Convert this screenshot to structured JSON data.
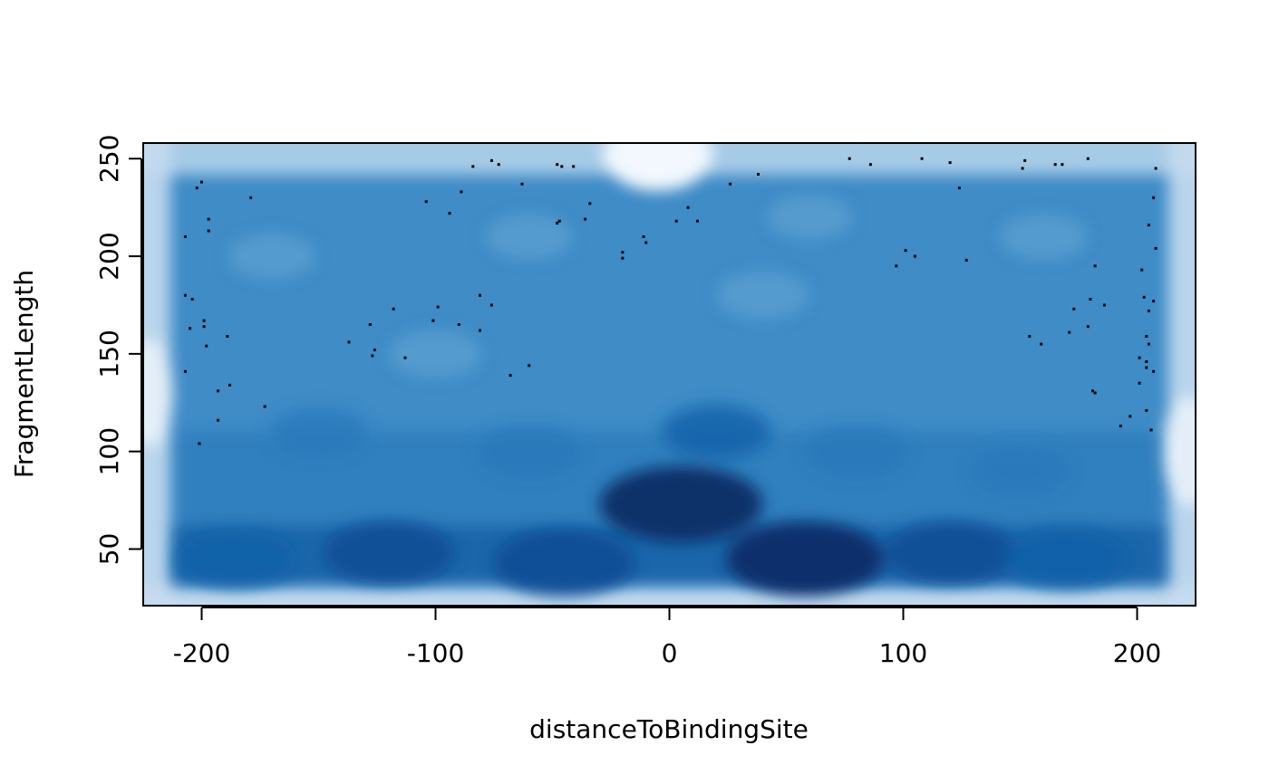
{
  "chart_data": {
    "type": "heatmap",
    "subtype": "smoothScatter",
    "title": "",
    "xlabel": "distanceToBindingSite",
    "ylabel": "FragmentLength",
    "xlim": [
      -225,
      225
    ],
    "ylim": [
      21,
      258
    ],
    "x_ticks": [
      -200,
      -100,
      0,
      100,
      200
    ],
    "y_ticks": [
      50,
      100,
      150,
      200,
      250
    ],
    "x_tick_labels": [
      "-200",
      "-100",
      "0",
      "100",
      "200"
    ],
    "y_tick_labels": [
      "50",
      "100",
      "150",
      "200",
      "250"
    ],
    "grid": false,
    "legend": "none",
    "colors": {
      "low": "#f7fbff",
      "mid": "#4292c6",
      "high": "#08306b",
      "point": "#000000",
      "axis": "#000000"
    },
    "density_peaks": [
      {
        "x": 5,
        "y": 73,
        "weight": 1.0
      },
      {
        "x": 58,
        "y": 45,
        "weight": 0.95
      },
      {
        "x": -45,
        "y": 43,
        "weight": 0.8
      },
      {
        "x": -120,
        "y": 48,
        "weight": 0.7
      },
      {
        "x": 120,
        "y": 48,
        "weight": 0.7
      },
      {
        "x": 170,
        "y": 45,
        "weight": 0.65
      },
      {
        "x": -185,
        "y": 45,
        "weight": 0.6
      },
      {
        "x": 20,
        "y": 110,
        "weight": 0.5
      },
      {
        "x": -60,
        "y": 100,
        "weight": 0.45
      },
      {
        "x": 80,
        "y": 100,
        "weight": 0.45
      },
      {
        "x": -150,
        "y": 110,
        "weight": 0.4
      },
      {
        "x": 150,
        "y": 90,
        "weight": 0.4
      },
      {
        "x": -100,
        "y": 150,
        "weight": 0.35
      },
      {
        "x": 40,
        "y": 180,
        "weight": 0.35
      },
      {
        "x": -170,
        "y": 200,
        "weight": 0.3
      },
      {
        "x": 160,
        "y": 210,
        "weight": 0.3
      },
      {
        "x": -60,
        "y": 210,
        "weight": 0.3
      },
      {
        "x": 60,
        "y": 220,
        "weight": 0.28
      }
    ],
    "points": [
      {
        "x": -207,
        "y": 210
      },
      {
        "x": -200,
        "y": 238
      },
      {
        "x": -202,
        "y": 235
      },
      {
        "x": -197,
        "y": 219
      },
      {
        "x": -197,
        "y": 213
      },
      {
        "x": -179,
        "y": 230
      },
      {
        "x": -207,
        "y": 180
      },
      {
        "x": -204,
        "y": 178
      },
      {
        "x": -205,
        "y": 163
      },
      {
        "x": -199,
        "y": 167
      },
      {
        "x": -199,
        "y": 164
      },
      {
        "x": -198,
        "y": 154
      },
      {
        "x": -189,
        "y": 159
      },
      {
        "x": -207,
        "y": 141
      },
      {
        "x": -193,
        "y": 131
      },
      {
        "x": -188,
        "y": 134
      },
      {
        "x": -193,
        "y": 116
      },
      {
        "x": -201,
        "y": 104
      },
      {
        "x": -173,
        "y": 123
      },
      {
        "x": -137,
        "y": 156
      },
      {
        "x": -128,
        "y": 165
      },
      {
        "x": -127,
        "y": 149
      },
      {
        "x": -126,
        "y": 152
      },
      {
        "x": -118,
        "y": 173
      },
      {
        "x": -113,
        "y": 148
      },
      {
        "x": -104,
        "y": 228
      },
      {
        "x": -101,
        "y": 167
      },
      {
        "x": -99,
        "y": 174
      },
      {
        "x": -94,
        "y": 222
      },
      {
        "x": -89,
        "y": 233
      },
      {
        "x": -90,
        "y": 165
      },
      {
        "x": -84,
        "y": 246
      },
      {
        "x": -81,
        "y": 180
      },
      {
        "x": -81,
        "y": 162
      },
      {
        "x": -76,
        "y": 249
      },
      {
        "x": -73,
        "y": 247
      },
      {
        "x": -76,
        "y": 175
      },
      {
        "x": -68,
        "y": 139
      },
      {
        "x": -63,
        "y": 237
      },
      {
        "x": -60,
        "y": 144
      },
      {
        "x": -48,
        "y": 247
      },
      {
        "x": -46,
        "y": 246
      },
      {
        "x": -41,
        "y": 246
      },
      {
        "x": -48,
        "y": 217
      },
      {
        "x": -47,
        "y": 218
      },
      {
        "x": -36,
        "y": 219
      },
      {
        "x": -34,
        "y": 227
      },
      {
        "x": -20,
        "y": 202
      },
      {
        "x": -20,
        "y": 199
      },
      {
        "x": -11,
        "y": 210
      },
      {
        "x": -10,
        "y": 207
      },
      {
        "x": 3,
        "y": 218
      },
      {
        "x": 8,
        "y": 225
      },
      {
        "x": 12,
        "y": 218
      },
      {
        "x": 26,
        "y": 237
      },
      {
        "x": 38,
        "y": 242
      },
      {
        "x": 77,
        "y": 250
      },
      {
        "x": 86,
        "y": 247
      },
      {
        "x": 108,
        "y": 250
      },
      {
        "x": 120,
        "y": 248
      },
      {
        "x": 124,
        "y": 235
      },
      {
        "x": 97,
        "y": 195
      },
      {
        "x": 101,
        "y": 203
      },
      {
        "x": 105,
        "y": 200
      },
      {
        "x": 127,
        "y": 198
      },
      {
        "x": 151,
        "y": 245
      },
      {
        "x": 152,
        "y": 249
      },
      {
        "x": 165,
        "y": 247
      },
      {
        "x": 168,
        "y": 247
      },
      {
        "x": 179,
        "y": 250
      },
      {
        "x": 182,
        "y": 195
      },
      {
        "x": 208,
        "y": 245
      },
      {
        "x": 207,
        "y": 230
      },
      {
        "x": 205,
        "y": 216
      },
      {
        "x": 208,
        "y": 204
      },
      {
        "x": 202,
        "y": 193
      },
      {
        "x": 203,
        "y": 179
      },
      {
        "x": 207,
        "y": 177
      },
      {
        "x": 205,
        "y": 172
      },
      {
        "x": 173,
        "y": 173
      },
      {
        "x": 180,
        "y": 178
      },
      {
        "x": 186,
        "y": 175
      },
      {
        "x": 171,
        "y": 161
      },
      {
        "x": 179,
        "y": 164
      },
      {
        "x": 154,
        "y": 159
      },
      {
        "x": 159,
        "y": 155
      },
      {
        "x": 204,
        "y": 159
      },
      {
        "x": 205,
        "y": 155
      },
      {
        "x": 201,
        "y": 148
      },
      {
        "x": 204,
        "y": 146
      },
      {
        "x": 204,
        "y": 143
      },
      {
        "x": 207,
        "y": 141
      },
      {
        "x": 201,
        "y": 135
      },
      {
        "x": 181,
        "y": 131
      },
      {
        "x": 182,
        "y": 130
      },
      {
        "x": 204,
        "y": 121
      },
      {
        "x": 197,
        "y": 118
      },
      {
        "x": 193,
        "y": 113
      },
      {
        "x": 206,
        "y": 111
      }
    ]
  }
}
